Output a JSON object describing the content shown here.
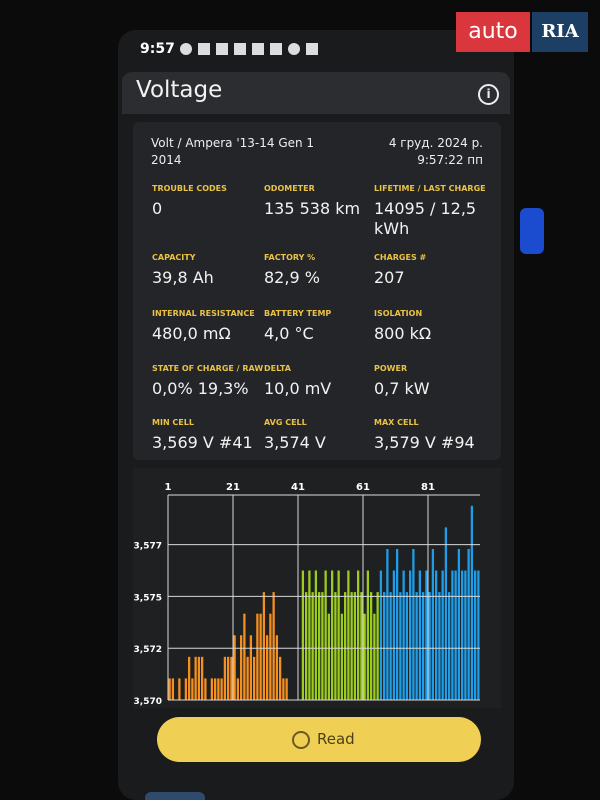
{
  "status_bar": {
    "time": "9:57"
  },
  "watermark": {
    "brand": "auto",
    "brand_box": "RIA"
  },
  "app_bar": {
    "title": "Voltage"
  },
  "card": {
    "vehicle": "Volt / Ampera '13-14 Gen 1 2014",
    "timestamp": "4 груд. 2024 р. 9:57:22 пп",
    "stats": [
      {
        "label": "TROUBLE CODES",
        "value": "0"
      },
      {
        "label": "ODOMETER",
        "value": "135 538 km"
      },
      {
        "label": "LIFETIME / LAST CHARGE",
        "value": "14095 / 12,5 kWh"
      },
      {
        "label": "CAPACITY",
        "value": "39,8 Ah"
      },
      {
        "label": "FACTORY %",
        "value": "82,9 %"
      },
      {
        "label": "CHARGES #",
        "value": "207"
      },
      {
        "label": "INTERNAL RESISTANCE",
        "value": "480,0 mΩ"
      },
      {
        "label": "BATTERY TEMP",
        "value": "4,0 °C"
      },
      {
        "label": "ISOLATION",
        "value": "800 kΩ"
      },
      {
        "label": "STATE OF CHARGE / RAW",
        "value": "0,0%  19,3%"
      },
      {
        "label": "DELTA",
        "value": "10,0 mV"
      },
      {
        "label": "POWER",
        "value": "0,7 kW"
      },
      {
        "label": "MIN CELL",
        "value": "3,569 V #41"
      },
      {
        "label": "AVG CELL",
        "value": "3,574 V"
      },
      {
        "label": "MAX CELL",
        "value": "3,579 V #94"
      }
    ]
  },
  "chart_data": {
    "type": "bar",
    "xlim": [
      1,
      97
    ],
    "xticks": [
      1,
      21,
      41,
      61,
      81
    ],
    "ylim": [
      3.57,
      3.5795
    ],
    "yticks": [
      {
        "value": 3.57,
        "label": "3,570"
      },
      {
        "value": 3.5724,
        "label": "3,572"
      },
      {
        "value": 3.5748,
        "label": "3,575"
      },
      {
        "value": 3.5772,
        "label": "3,577"
      }
    ],
    "grid": true,
    "series": [
      {
        "color": "#f5901e",
        "x": [
          1,
          2,
          3,
          4,
          5,
          6,
          7,
          8,
          9,
          10,
          11,
          12,
          13,
          14,
          15,
          16,
          17,
          18,
          19,
          20,
          21,
          22,
          23,
          24,
          25,
          26,
          27,
          28,
          29,
          30,
          31,
          32,
          33,
          34,
          35,
          36,
          37,
          38,
          39,
          40
        ],
        "values": [
          3.571,
          3.571,
          3.57,
          3.571,
          3.57,
          3.571,
          3.572,
          3.571,
          3.572,
          3.572,
          3.572,
          3.571,
          3.57,
          3.571,
          3.571,
          3.571,
          3.571,
          3.572,
          3.572,
          3.572,
          3.573,
          3.571,
          3.573,
          3.574,
          3.572,
          3.573,
          3.572,
          3.574,
          3.574,
          3.575,
          3.573,
          3.574,
          3.575,
          3.573,
          3.572,
          3.571,
          3.571,
          3.57,
          3.57,
          3.57
        ]
      },
      {
        "color": "#9ccc1c",
        "x": [
          41,
          42,
          43,
          44,
          45,
          46,
          47,
          48,
          49,
          50,
          51,
          52,
          53,
          54,
          55,
          56,
          57,
          58,
          59,
          60,
          61,
          62,
          63,
          64,
          65
        ],
        "values": [
          3.569,
          3.576,
          3.575,
          3.576,
          3.575,
          3.576,
          3.575,
          3.575,
          3.576,
          3.574,
          3.576,
          3.575,
          3.576,
          3.574,
          3.575,
          3.576,
          3.575,
          3.575,
          3.576,
          3.575,
          3.574,
          3.576,
          3.575,
          3.574,
          3.575
        ]
      },
      {
        "color": "#1e9ee8",
        "x": [
          66,
          67,
          68,
          69,
          70,
          71,
          72,
          73,
          74,
          75,
          76,
          77,
          78,
          79,
          80,
          81,
          82,
          83,
          84,
          85,
          86,
          87,
          88,
          89,
          90,
          91,
          92,
          93,
          94,
          95,
          96
        ],
        "values": [
          3.576,
          3.575,
          3.577,
          3.575,
          3.576,
          3.577,
          3.575,
          3.576,
          3.575,
          3.576,
          3.577,
          3.575,
          3.576,
          3.575,
          3.576,
          3.575,
          3.577,
          3.576,
          3.575,
          3.576,
          3.578,
          3.575,
          3.576,
          3.576,
          3.577,
          3.576,
          3.576,
          3.577,
          3.579,
          3.576,
          3.576
        ]
      }
    ]
  },
  "button": {
    "label": "Read"
  }
}
